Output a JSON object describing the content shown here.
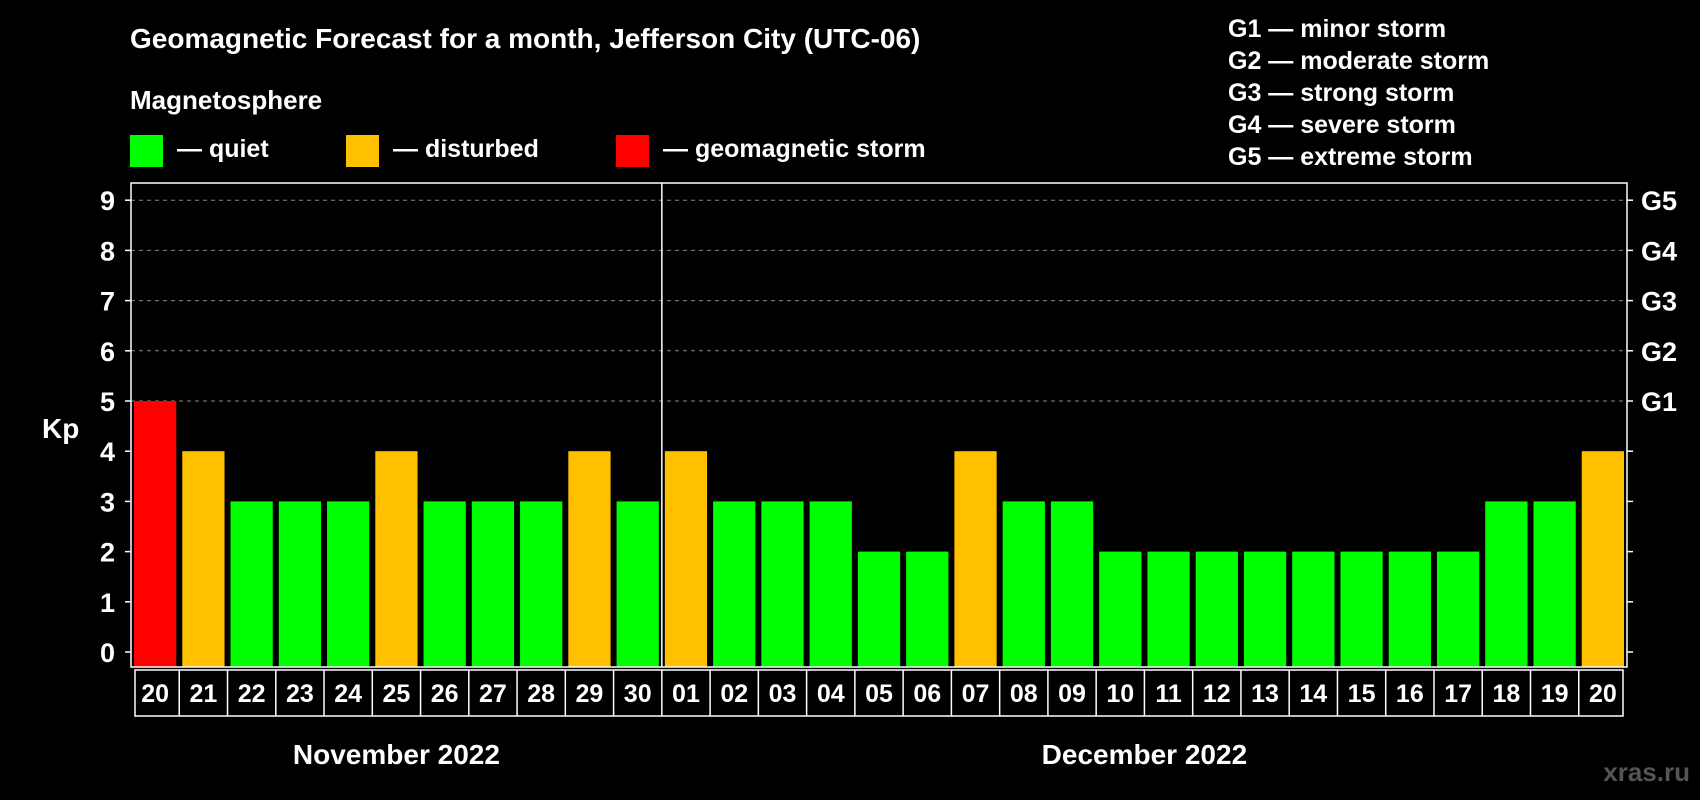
{
  "chart_data": {
    "type": "bar",
    "title": "Geomagnetic Forecast for a month, Jefferson City (UTC-06)",
    "subtitle": "Magnetosphere",
    "ylabel": "Kp",
    "ylim": [
      0,
      9
    ],
    "yticks": [
      "0",
      "1",
      "2",
      "3",
      "4",
      "5",
      "6",
      "7",
      "8",
      "9"
    ],
    "storm_scale_labels": [
      {
        "kp": 5,
        "label": "G1"
      },
      {
        "kp": 6,
        "label": "G2"
      },
      {
        "kp": 7,
        "label": "G3"
      },
      {
        "kp": 8,
        "label": "G4"
      },
      {
        "kp": 9,
        "label": "G5"
      }
    ],
    "legend": [
      {
        "key": "quiet",
        "label": "— quiet",
        "color": "#00ff00"
      },
      {
        "key": "disturbed",
        "label": "— disturbed",
        "color": "#ffc000"
      },
      {
        "key": "storm",
        "label": "— geomagnetic storm",
        "color": "#ff0000"
      }
    ],
    "storm_legend": [
      "G1 — minor storm",
      "G2 — moderate storm",
      "G3 — strong storm",
      "G4 — severe storm",
      "G5 — extreme storm"
    ],
    "months": [
      {
        "label": "November 2022",
        "days": 11
      },
      {
        "label": "December 2022",
        "days": 20
      }
    ],
    "categories": [
      "20",
      "21",
      "22",
      "23",
      "24",
      "25",
      "26",
      "27",
      "28",
      "29",
      "30",
      "01",
      "02",
      "03",
      "04",
      "05",
      "06",
      "07",
      "08",
      "09",
      "10",
      "11",
      "12",
      "13",
      "14",
      "15",
      "16",
      "17",
      "18",
      "19",
      "20"
    ],
    "values": [
      5,
      4,
      3,
      3,
      3,
      4,
      3,
      3,
      3,
      4,
      3,
      4,
      3,
      3,
      3,
      2,
      2,
      4,
      3,
      3,
      2,
      2,
      2,
      2,
      2,
      2,
      2,
      2,
      3,
      3,
      4
    ],
    "status": [
      "storm",
      "disturbed",
      "quiet",
      "quiet",
      "quiet",
      "disturbed",
      "quiet",
      "quiet",
      "quiet",
      "disturbed",
      "quiet",
      "disturbed",
      "quiet",
      "quiet",
      "quiet",
      "quiet",
      "quiet",
      "disturbed",
      "quiet",
      "quiet",
      "quiet",
      "quiet",
      "quiet",
      "quiet",
      "quiet",
      "quiet",
      "quiet",
      "quiet",
      "quiet",
      "quiet",
      "disturbed"
    ]
  },
  "watermark": "xras.ru"
}
